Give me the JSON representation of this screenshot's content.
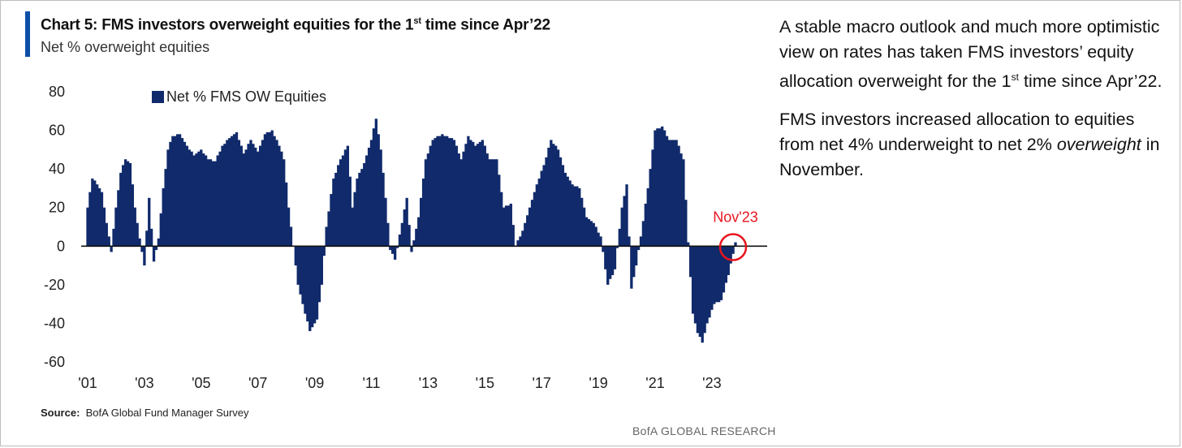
{
  "header": {
    "title_prefix": "Chart 5: FMS investors overweight equities for the 1",
    "title_sup": "st",
    "title_suffix": " time since Apr’22",
    "subtitle": "Net % overweight equities"
  },
  "footer": {
    "source_label": "Source:",
    "source_text": "BofA Global Fund Manager Survey",
    "brand": "BofA GLOBAL RESEARCH"
  },
  "commentary": {
    "p1_a": "A stable macro outlook and much more optimistic view on rates has taken FMS investors’ equity allocation overweight for the 1",
    "p1_sup": "st",
    "p1_b": " time since Apr’22.",
    "p2_a": "FMS investors increased allocation to equities from net 4% underweight to net 2% ",
    "p2_em": "overweight",
    "p2_b": " in November."
  },
  "colors": {
    "bar": "#102a6b",
    "annotation": "#e8141e",
    "accent": "#0b4fa8"
  },
  "chart_data": {
    "type": "bar",
    "title": "Chart 5: FMS investors overweight equities for the 1st time since Apr’22",
    "subtitle": "Net % overweight equities",
    "ylim": [
      -60,
      80
    ],
    "yticks": [
      80,
      60,
      40,
      20,
      0,
      -20,
      -40,
      -60
    ],
    "xtick_labels": [
      "'01",
      "'03",
      "'05",
      "'07",
      "'09",
      "'11",
      "'13",
      "'15",
      "'17",
      "'19",
      "'21",
      "'23"
    ],
    "x_start": "2001-01",
    "x_end": "2023-11",
    "legend": "Net % FMS OW Equities",
    "legend_position": "top-left",
    "annotation": {
      "label": "Nov'23",
      "x": "2023-11",
      "y": 2
    },
    "series": [
      {
        "name": "Net % FMS OW Equities",
        "anchors": [
          [
            "2001-01",
            20
          ],
          [
            "2001-03",
            35
          ],
          [
            "2001-05",
            32
          ],
          [
            "2001-07",
            28
          ],
          [
            "2001-09",
            12
          ],
          [
            "2001-11",
            -3
          ],
          [
            "2002-01",
            20
          ],
          [
            "2002-03",
            38
          ],
          [
            "2002-05",
            45
          ],
          [
            "2002-07",
            43
          ],
          [
            "2002-09",
            20
          ],
          [
            "2002-11",
            4
          ],
          [
            "2003-01",
            -10
          ],
          [
            "2003-03",
            25
          ],
          [
            "2003-05",
            -8
          ],
          [
            "2003-07",
            4
          ],
          [
            "2003-09",
            30
          ],
          [
            "2003-11",
            50
          ],
          [
            "2004-01",
            57
          ],
          [
            "2004-04",
            58
          ],
          [
            "2004-07",
            52
          ],
          [
            "2004-10",
            47
          ],
          [
            "2005-01",
            50
          ],
          [
            "2005-04",
            45
          ],
          [
            "2005-07",
            44
          ],
          [
            "2005-10",
            52
          ],
          [
            "2006-01",
            56
          ],
          [
            "2006-04",
            59
          ],
          [
            "2006-07",
            48
          ],
          [
            "2006-10",
            55
          ],
          [
            "2007-01",
            49
          ],
          [
            "2007-04",
            58
          ],
          [
            "2007-07",
            60
          ],
          [
            "2007-10",
            52
          ],
          [
            "2007-12",
            45
          ],
          [
            "2008-02",
            20
          ],
          [
            "2008-04",
            0
          ],
          [
            "2008-06",
            -20
          ],
          [
            "2008-09",
            -35
          ],
          [
            "2008-11",
            -44
          ],
          [
            "2009-02",
            -38
          ],
          [
            "2009-04",
            -20
          ],
          [
            "2009-06",
            10
          ],
          [
            "2009-09",
            35
          ],
          [
            "2009-12",
            45
          ],
          [
            "2010-03",
            52
          ],
          [
            "2010-05",
            20
          ],
          [
            "2010-07",
            35
          ],
          [
            "2010-10",
            43
          ],
          [
            "2011-01",
            55
          ],
          [
            "2011-03",
            66
          ],
          [
            "2011-05",
            50
          ],
          [
            "2011-07",
            25
          ],
          [
            "2011-09",
            -2
          ],
          [
            "2011-11",
            -7
          ],
          [
            "2012-02",
            12
          ],
          [
            "2012-04",
            25
          ],
          [
            "2012-06",
            -3
          ],
          [
            "2012-09",
            15
          ],
          [
            "2012-12",
            45
          ],
          [
            "2013-03",
            55
          ],
          [
            "2013-07",
            58
          ],
          [
            "2013-12",
            55
          ],
          [
            "2014-03",
            45
          ],
          [
            "2014-06",
            57
          ],
          [
            "2014-09",
            52
          ],
          [
            "2014-12",
            55
          ],
          [
            "2015-03",
            45
          ],
          [
            "2015-06",
            45
          ],
          [
            "2015-09",
            20
          ],
          [
            "2015-12",
            22
          ],
          [
            "2016-02",
            0
          ],
          [
            "2016-05",
            8
          ],
          [
            "2016-08",
            20
          ],
          [
            "2016-11",
            32
          ],
          [
            "2017-02",
            42
          ],
          [
            "2017-05",
            55
          ],
          [
            "2017-08",
            50
          ],
          [
            "2017-11",
            38
          ],
          [
            "2018-02",
            32
          ],
          [
            "2018-05",
            30
          ],
          [
            "2018-08",
            15
          ],
          [
            "2018-11",
            12
          ],
          [
            "2019-02",
            5
          ],
          [
            "2019-05",
            -20
          ],
          [
            "2019-08",
            -12
          ],
          [
            "2019-11",
            20
          ],
          [
            "2020-01",
            32
          ],
          [
            "2020-03",
            -22
          ],
          [
            "2020-05",
            -10
          ],
          [
            "2020-07",
            5
          ],
          [
            "2020-10",
            30
          ],
          [
            "2021-01",
            60
          ],
          [
            "2021-04",
            62
          ],
          [
            "2021-07",
            55
          ],
          [
            "2021-10",
            55
          ],
          [
            "2022-01",
            45
          ],
          [
            "2022-03",
            2
          ],
          [
            "2022-05",
            -35
          ],
          [
            "2022-07",
            -45
          ],
          [
            "2022-09",
            -50
          ],
          [
            "2022-11",
            -40
          ],
          [
            "2023-02",
            -30
          ],
          [
            "2023-05",
            -28
          ],
          [
            "2023-08",
            -15
          ],
          [
            "2023-10",
            -4
          ],
          [
            "2023-11",
            2
          ]
        ]
      }
    ]
  }
}
